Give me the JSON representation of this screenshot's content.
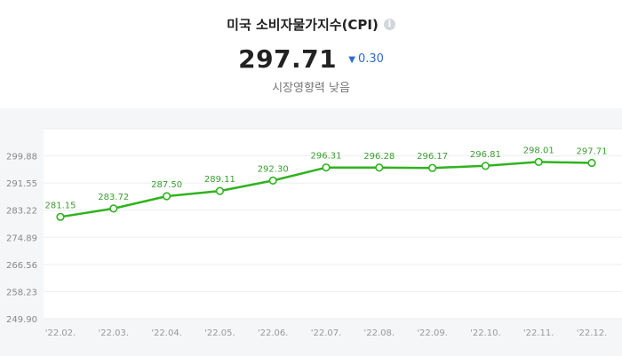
{
  "header": {
    "title": "미국 소비자물가지수(CPI)",
    "info_icon": "info-icon",
    "value": "297.71",
    "change_icon": "triangle-down-icon",
    "change": "0.30",
    "impact": "시장영향력 낮음"
  },
  "colors": {
    "line": "#2fb31e",
    "down": "#2d6ad8",
    "chart_bg": "#f5f6f7"
  },
  "chart_data": {
    "type": "line",
    "categories": [
      "'22.02.",
      "'22.03.",
      "'22.04.",
      "'22.05.",
      "'22.06.",
      "'22.07.",
      "'22.08.",
      "'22.09.",
      "'22.10.",
      "'22.11.",
      "'22.12."
    ],
    "values": [
      281.15,
      283.72,
      287.5,
      289.11,
      292.3,
      296.31,
      296.28,
      296.17,
      296.81,
      298.01,
      297.71
    ],
    "value_labels": [
      "281.15",
      "283.72",
      "287.50",
      "289.11",
      "292.30",
      "296.31",
      "296.28",
      "296.17",
      "296.81",
      "298.01",
      "297.71"
    ],
    "yticks": [
      "249.90",
      "258.23",
      "266.56",
      "274.89",
      "283.22",
      "291.55",
      "299.88"
    ],
    "ylim": [
      249.9,
      308.21
    ],
    "grid": true
  }
}
